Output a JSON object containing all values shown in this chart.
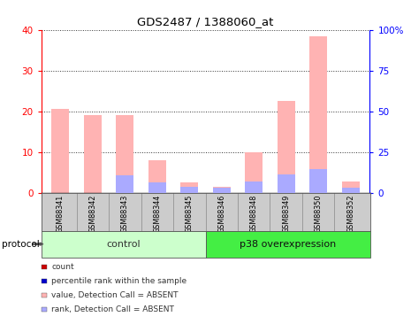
{
  "title": "GDS2487 / 1388060_at",
  "samples": [
    "GSM88341",
    "GSM88342",
    "GSM88343",
    "GSM88344",
    "GSM88345",
    "GSM88346",
    "GSM88348",
    "GSM88349",
    "GSM88350",
    "GSM88352"
  ],
  "pink_values": [
    20.5,
    19.0,
    19.0,
    8.0,
    2.5,
    1.5,
    9.8,
    22.5,
    38.5,
    2.8
  ],
  "blue_values": [
    0.0,
    0.0,
    10.5,
    6.5,
    3.8,
    2.8,
    7.0,
    11.0,
    14.5,
    3.0
  ],
  "n_control": 5,
  "n_p38": 5,
  "control_label": "control",
  "p38_label": "p38 overexpression",
  "protocol_label": "protocol",
  "ylim_left": [
    0,
    40
  ],
  "ylim_right": [
    0,
    100
  ],
  "yticks_left": [
    0,
    10,
    20,
    30,
    40
  ],
  "yticks_right": [
    0,
    25,
    50,
    75,
    100
  ],
  "ytick_labels_right": [
    "0",
    "25",
    "50",
    "75",
    "100%"
  ],
  "left_tick_color": "#ff0000",
  "right_tick_color": "#0000ff",
  "pink_color": "#ffb3b3",
  "blue_color": "#aaaaff",
  "bar_width": 0.55,
  "grid_color": "#000000",
  "bg_color": "#ffffff",
  "plot_bg": "#ffffff",
  "control_bg": "#ccffcc",
  "p38_bg": "#44ee44",
  "sample_bg": "#cccccc",
  "legend_items": [
    {
      "color": "#cc0000",
      "label": "count"
    },
    {
      "color": "#0000cc",
      "label": "percentile rank within the sample"
    },
    {
      "color": "#ffb3b3",
      "label": "value, Detection Call = ABSENT"
    },
    {
      "color": "#aaaaff",
      "label": "rank, Detection Call = ABSENT"
    }
  ]
}
